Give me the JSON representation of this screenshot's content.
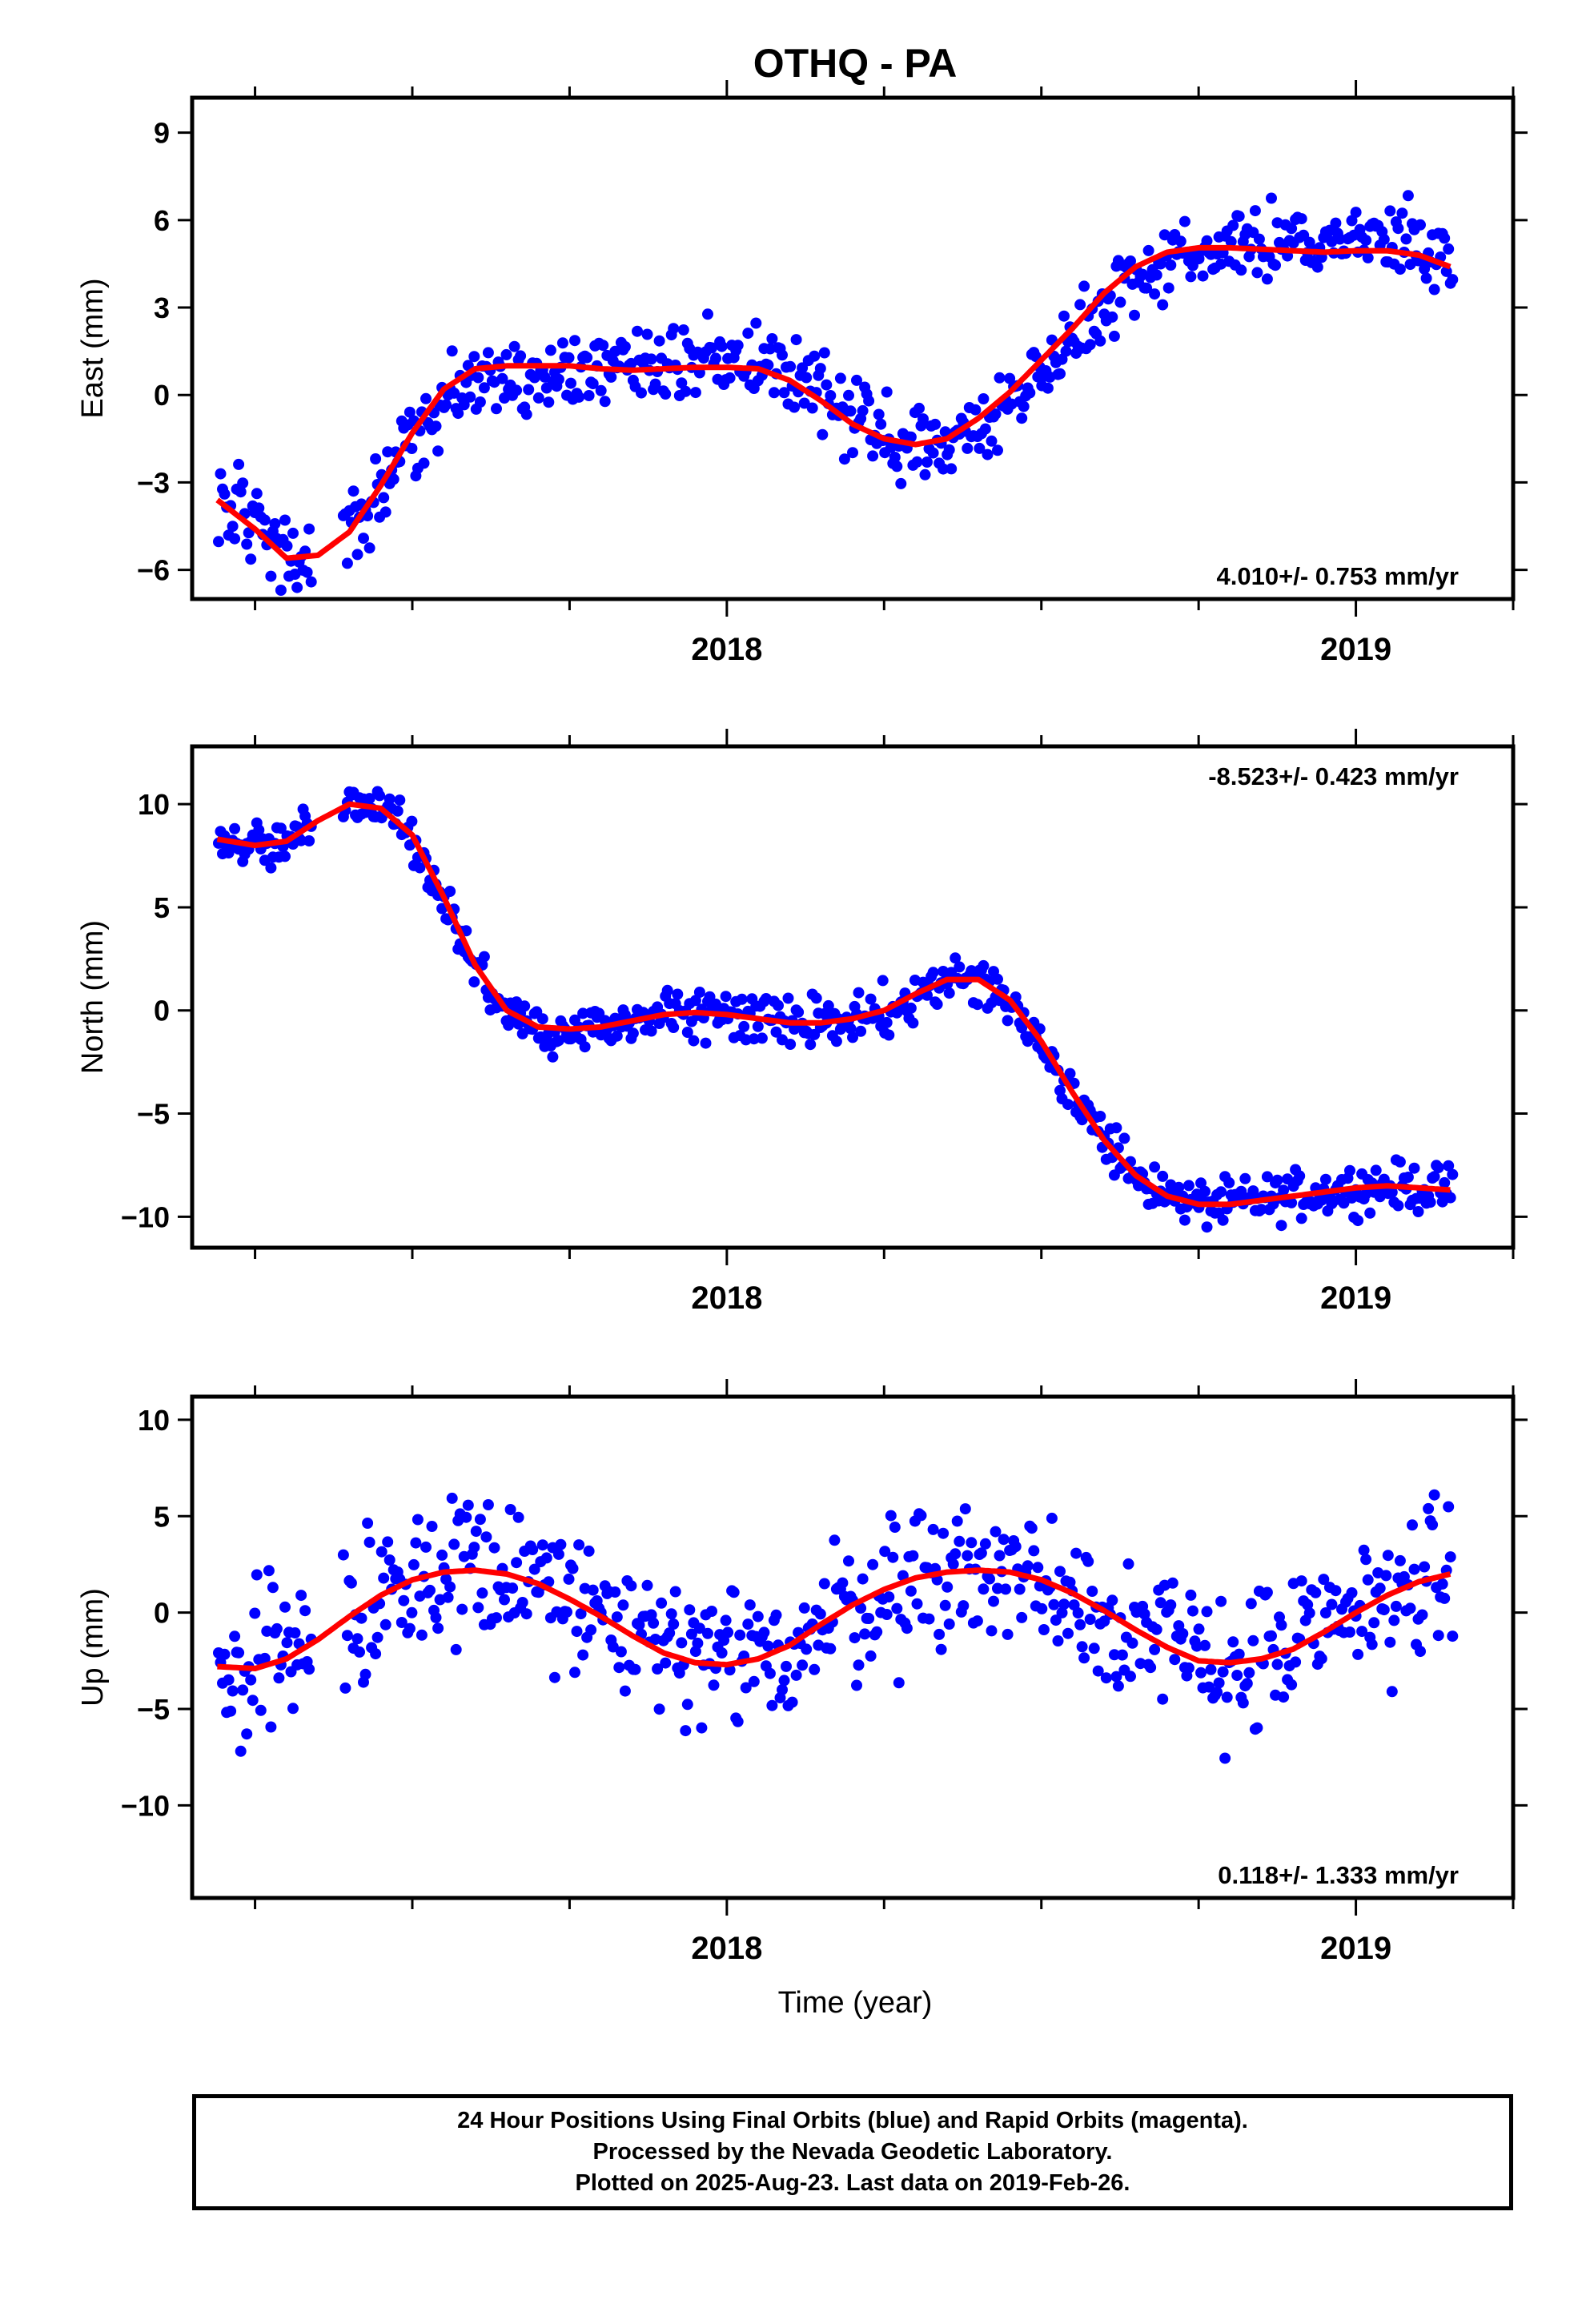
{
  "title": "OTHQ - PA",
  "xlabel": "Time (year)",
  "colors": {
    "data": "#0000ff",
    "fit": "#ff0000",
    "axes": "#000000"
  },
  "footer": {
    "line1": "24 Hour Positions Using Final Orbits (blue) and Rapid Orbits (magenta).",
    "line2": "Processed by the Nevada Geodetic Laboratory.",
    "line3": "Plotted on 2025-Aug-23. Last data on 2019-Feb-26."
  },
  "chart_data": [
    {
      "type": "scatter",
      "ylabel": "East (mm)",
      "xlim": [
        2017.15,
        2019.25
      ],
      "ylim": [
        -7.0,
        10.2
      ],
      "yticks": [
        -6,
        -3,
        0,
        3,
        6,
        9
      ],
      "ytick_labels": [
        "−6",
        "−3",
        "0",
        "3",
        "6",
        "9"
      ],
      "xticks": [
        2018,
        2019
      ],
      "xtick_labels": [
        "2018",
        "2019"
      ],
      "rate_label": "4.010+/- 0.753 mm/yr",
      "rate_position": "bottom-right",
      "data_color": "#0000ff",
      "fit_color": "#ff0000",
      "fit": {
        "x": [
          2017.19,
          2017.25,
          2017.3,
          2017.35,
          2017.4,
          2017.45,
          2017.5,
          2017.55,
          2017.6,
          2017.65,
          2017.7,
          2017.75,
          2017.8,
          2017.85,
          2017.9,
          2017.95,
          2018.0,
          2018.05,
          2018.1,
          2018.15,
          2018.2,
          2018.25,
          2018.3,
          2018.35,
          2018.4,
          2018.45,
          2018.5,
          2018.55,
          2018.6,
          2018.65,
          2018.7,
          2018.75,
          2018.8,
          2018.85,
          2018.9,
          2018.95,
          2019.0,
          2019.05,
          2019.1,
          2019.15
        ],
        "y": [
          -3.6,
          -4.6,
          -5.6,
          -5.5,
          -4.7,
          -3.1,
          -1.3,
          0.2,
          0.9,
          1.0,
          1.0,
          1.0,
          0.9,
          0.85,
          0.9,
          0.95,
          0.95,
          0.9,
          0.5,
          -0.2,
          -1.0,
          -1.5,
          -1.7,
          -1.5,
          -0.8,
          0.1,
          1.2,
          2.3,
          3.5,
          4.4,
          4.9,
          5.05,
          5.05,
          5.0,
          4.95,
          4.9,
          4.95,
          4.95,
          4.8,
          4.4
        ]
      },
      "seasonal": {
        "amplitude": 2.6,
        "period": 1.0,
        "phase": 1.3,
        "noise": 0.9
      },
      "gap": [
        2017.34,
        2017.39
      ]
    },
    {
      "type": "scatter",
      "ylabel": "North (mm)",
      "xlim": [
        2017.15,
        2019.25
      ],
      "ylim": [
        -11.5,
        12.8
      ],
      "yticks": [
        -10,
        -5,
        0,
        5,
        10
      ],
      "ytick_labels": [
        "−10",
        "−5",
        "0",
        "5",
        "10"
      ],
      "xticks": [
        2018,
        2019
      ],
      "xtick_labels": [
        "2018",
        "2019"
      ],
      "rate_label": "-8.523+/- 0.423 mm/yr",
      "rate_position": "top-right",
      "data_color": "#0000ff",
      "fit_color": "#ff0000",
      "fit": {
        "x": [
          2017.19,
          2017.25,
          2017.3,
          2017.35,
          2017.4,
          2017.45,
          2017.5,
          2017.55,
          2017.6,
          2017.65,
          2017.7,
          2017.75,
          2017.8,
          2017.85,
          2017.9,
          2017.95,
          2018.0,
          2018.05,
          2018.1,
          2018.15,
          2018.2,
          2018.25,
          2018.3,
          2018.35,
          2018.4,
          2018.45,
          2018.5,
          2018.55,
          2018.6,
          2018.65,
          2018.7,
          2018.75,
          2018.8,
          2018.85,
          2018.9,
          2018.95,
          2019.0,
          2019.05,
          2019.1,
          2019.15
        ],
        "y": [
          8.3,
          8.0,
          8.2,
          9.2,
          10.0,
          9.8,
          8.5,
          5.5,
          2.2,
          0.0,
          -0.8,
          -0.9,
          -0.8,
          -0.5,
          -0.2,
          -0.1,
          -0.2,
          -0.4,
          -0.6,
          -0.6,
          -0.4,
          0.0,
          0.8,
          1.5,
          1.5,
          0.5,
          -1.5,
          -4.0,
          -6.3,
          -8.0,
          -9.0,
          -9.4,
          -9.4,
          -9.2,
          -9.0,
          -8.8,
          -8.6,
          -8.5,
          -8.6,
          -8.7
        ]
      },
      "seasonal": {
        "amplitude": 0,
        "period": 1.0,
        "phase": 0,
        "noise": 0.8
      },
      "gap": [
        2017.34,
        2017.39
      ]
    },
    {
      "type": "scatter",
      "ylabel": "Up (mm)",
      "xlim": [
        2017.15,
        2019.25
      ],
      "ylim": [
        -14.8,
        11.2
      ],
      "yticks": [
        -10,
        -5,
        0,
        5,
        10
      ],
      "ytick_labels": [
        "−10",
        "−5",
        "0",
        "5",
        "10"
      ],
      "xticks": [
        2018,
        2019
      ],
      "xtick_labels": [
        "2018",
        "2019"
      ],
      "rate_label": "0.118+/- 1.333 mm/yr",
      "rate_position": "bottom-right",
      "data_color": "#0000ff",
      "fit_color": "#ff0000",
      "fit": {
        "x": [
          2017.19,
          2017.25,
          2017.3,
          2017.35,
          2017.4,
          2017.45,
          2017.5,
          2017.55,
          2017.6,
          2017.65,
          2017.7,
          2017.75,
          2017.8,
          2017.85,
          2017.9,
          2017.95,
          2018.0,
          2018.05,
          2018.1,
          2018.15,
          2018.2,
          2018.25,
          2018.3,
          2018.35,
          2018.4,
          2018.45,
          2018.5,
          2018.55,
          2018.6,
          2018.65,
          2018.7,
          2018.75,
          2018.8,
          2018.85,
          2018.9,
          2018.95,
          2019.0,
          2019.05,
          2019.1,
          2019.15
        ],
        "y": [
          -2.8,
          -2.9,
          -2.4,
          -1.4,
          -0.2,
          0.9,
          1.7,
          2.1,
          2.2,
          2.0,
          1.5,
          0.7,
          -0.2,
          -1.2,
          -2.1,
          -2.6,
          -2.7,
          -2.4,
          -1.7,
          -0.6,
          0.4,
          1.2,
          1.8,
          2.1,
          2.2,
          2.1,
          1.7,
          1.0,
          0.1,
          -0.9,
          -1.8,
          -2.5,
          -2.6,
          -2.4,
          -1.9,
          -1.0,
          0.0,
          0.9,
          1.6,
          2.0
        ]
      },
      "seasonal": {
        "amplitude": 0,
        "period": 1.0,
        "phase": 0,
        "noise": 2.8
      },
      "gap": [
        2017.34,
        2017.39
      ]
    }
  ]
}
